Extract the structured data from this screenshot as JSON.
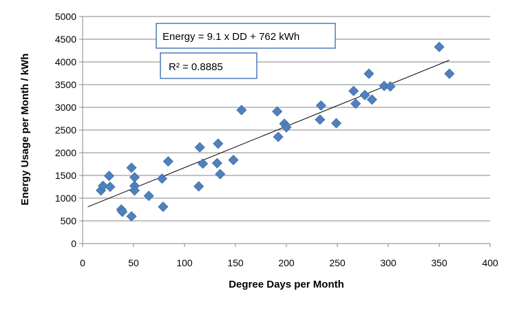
{
  "chart_data": {
    "type": "scatter",
    "title": "",
    "xlabel": "Degree Days per Month",
    "ylabel": "Energy Usage per Month / kWh",
    "xlim": [
      0,
      400
    ],
    "ylim": [
      0,
      5000
    ],
    "x_ticks": [
      0,
      50,
      100,
      150,
      200,
      250,
      300,
      350,
      400
    ],
    "y_ticks": [
      0,
      500,
      1000,
      1500,
      2000,
      2500,
      3000,
      3500,
      4000,
      4500,
      5000
    ],
    "grid": "horizontal",
    "legend": "none",
    "marker_color": "#4f81bd",
    "trendline_color": "#000000",
    "series": [
      {
        "marker": "diamond",
        "points": [
          [
            18,
            1170
          ],
          [
            20,
            1270
          ],
          [
            26,
            1490
          ],
          [
            27,
            1250
          ],
          [
            38,
            750
          ],
          [
            39,
            700
          ],
          [
            48,
            600
          ],
          [
            48,
            1670
          ],
          [
            51,
            1460
          ],
          [
            51,
            1270
          ],
          [
            51,
            1170
          ],
          [
            65,
            1050
          ],
          [
            78,
            1430
          ],
          [
            79,
            810
          ],
          [
            84,
            1810
          ],
          [
            114,
            1260
          ],
          [
            115,
            2120
          ],
          [
            118,
            1760
          ],
          [
            132,
            1770
          ],
          [
            133,
            2200
          ],
          [
            135,
            1530
          ],
          [
            148,
            1840
          ],
          [
            156,
            2940
          ],
          [
            191,
            2910
          ],
          [
            192,
            2350
          ],
          [
            198,
            2640
          ],
          [
            200,
            2560
          ],
          [
            233,
            2730
          ],
          [
            234,
            3040
          ],
          [
            249,
            2650
          ],
          [
            266,
            3360
          ],
          [
            268,
            3080
          ],
          [
            277,
            3270
          ],
          [
            281,
            3740
          ],
          [
            284,
            3170
          ],
          [
            296,
            3470
          ],
          [
            302,
            3460
          ],
          [
            350,
            4330
          ],
          [
            360,
            3740
          ]
        ]
      }
    ],
    "trendline": {
      "slope": 9.1,
      "intercept": 762,
      "x_start": 5,
      "x_end": 360
    },
    "annotations": {
      "equation": "Energy = 9.1 x DD + 762 kWh",
      "r_squared": "R² = 0.8885"
    }
  }
}
